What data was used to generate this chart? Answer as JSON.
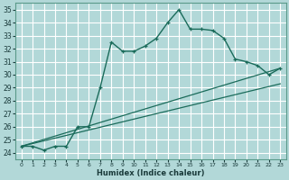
{
  "xlabel": "Humidex (Indice chaleur)",
  "bg_color": "#b2d8d8",
  "grid_color": "#ffffff",
  "line_color": "#1a6b5a",
  "xlim": [
    -0.5,
    23.5
  ],
  "ylim": [
    23.5,
    35.5
  ],
  "xticks": [
    0,
    1,
    2,
    3,
    4,
    5,
    6,
    7,
    8,
    9,
    10,
    11,
    12,
    13,
    14,
    15,
    16,
    17,
    18,
    19,
    20,
    21,
    22,
    23
  ],
  "yticks": [
    24,
    25,
    26,
    27,
    28,
    29,
    30,
    31,
    32,
    33,
    34,
    35
  ],
  "line1_x": [
    0,
    1,
    2,
    3,
    4,
    5,
    6,
    7,
    8,
    9,
    10,
    11,
    12,
    13,
    14,
    15,
    16,
    17,
    18,
    19,
    20,
    21,
    22,
    23
  ],
  "line1_y": [
    24.5,
    24.5,
    24.2,
    24.5,
    24.5,
    26.0,
    26.0,
    29.0,
    32.5,
    31.8,
    31.8,
    32.2,
    32.8,
    34.0,
    35.0,
    33.5,
    33.5,
    33.4,
    32.8,
    31.2,
    31.0,
    30.7,
    30.0,
    30.5
  ],
  "line2_x": [
    0,
    23
  ],
  "line2_y": [
    24.5,
    30.5
  ],
  "line3_x": [
    0,
    23
  ],
  "line3_y": [
    24.5,
    29.3
  ]
}
